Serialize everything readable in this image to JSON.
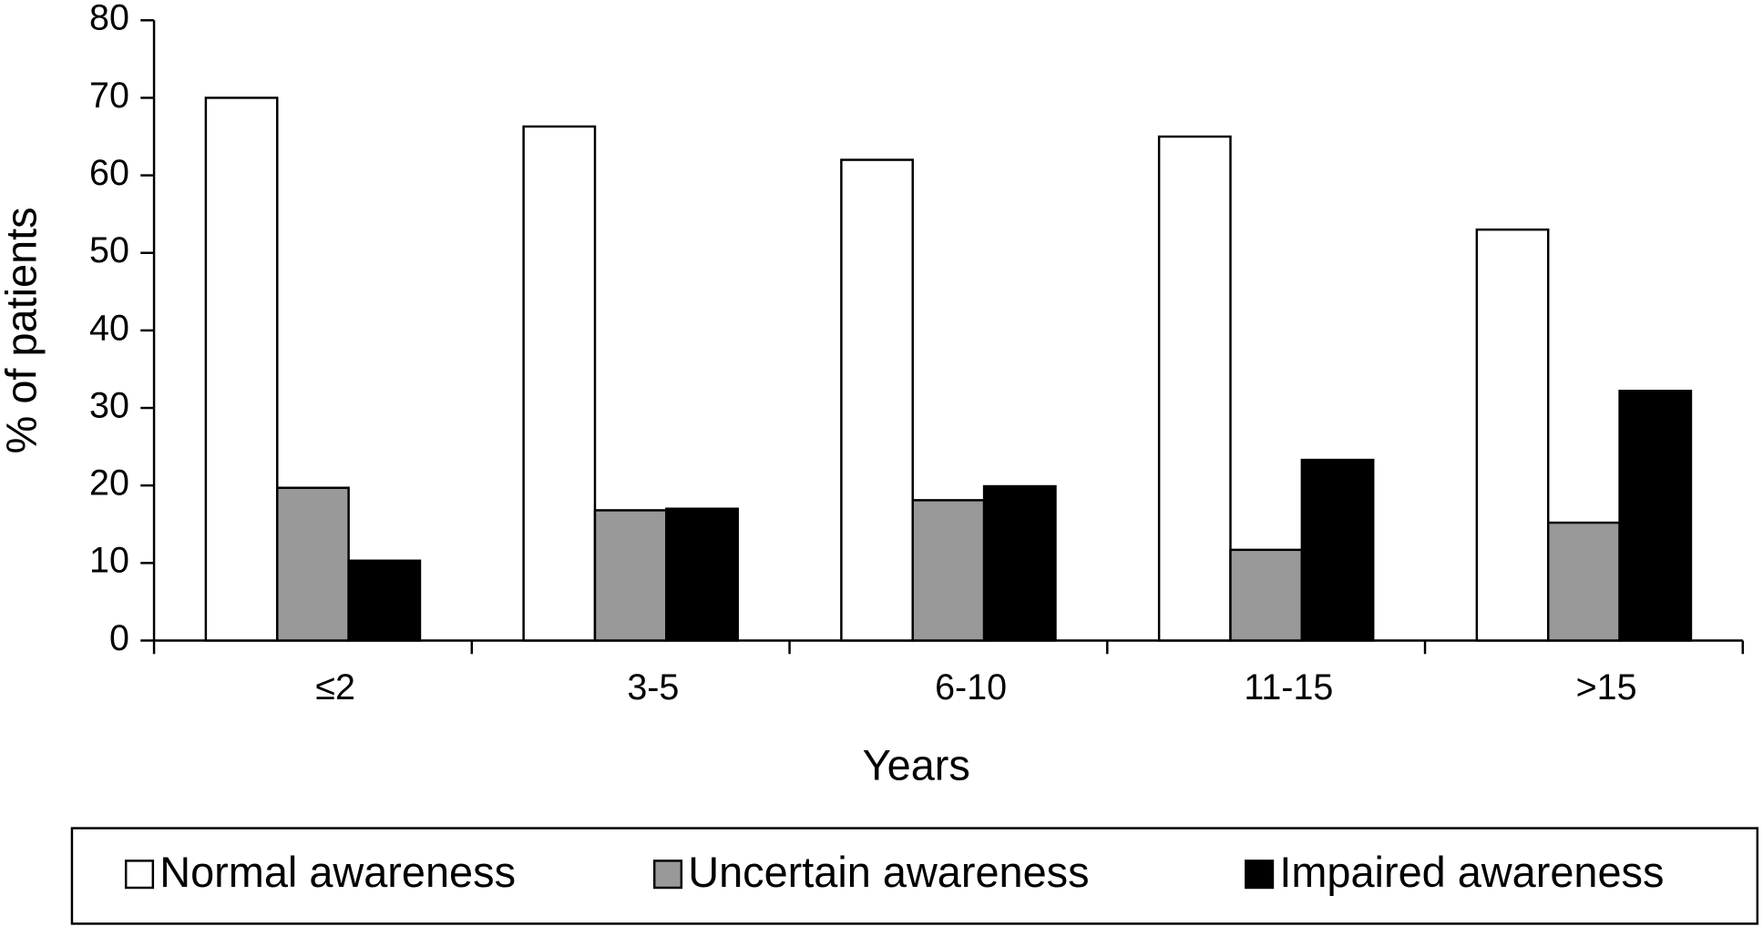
{
  "chart_data": {
    "type": "bar",
    "x_label": "Years",
    "y_label": "% of patients",
    "categories": [
      "≤2",
      "3-5",
      "6-10",
      "11-15",
      ">15"
    ],
    "series": [
      {
        "name": "Normal awareness",
        "color": "#ffffff",
        "values": [
          70,
          66.3,
          62,
          65,
          53
        ]
      },
      {
        "name": "Uncertain awareness",
        "color": "#999999",
        "values": [
          19.7,
          16.8,
          18.1,
          11.7,
          15.2
        ]
      },
      {
        "name": "Impaired awareness",
        "color": "#000000",
        "values": [
          10.3,
          17,
          19.9,
          23.3,
          32.2
        ]
      }
    ],
    "ylim": [
      0,
      80
    ],
    "yticks": [
      0,
      10,
      20,
      30,
      40,
      50,
      60,
      70,
      80
    ],
    "grid": false,
    "legend": "bottom"
  }
}
